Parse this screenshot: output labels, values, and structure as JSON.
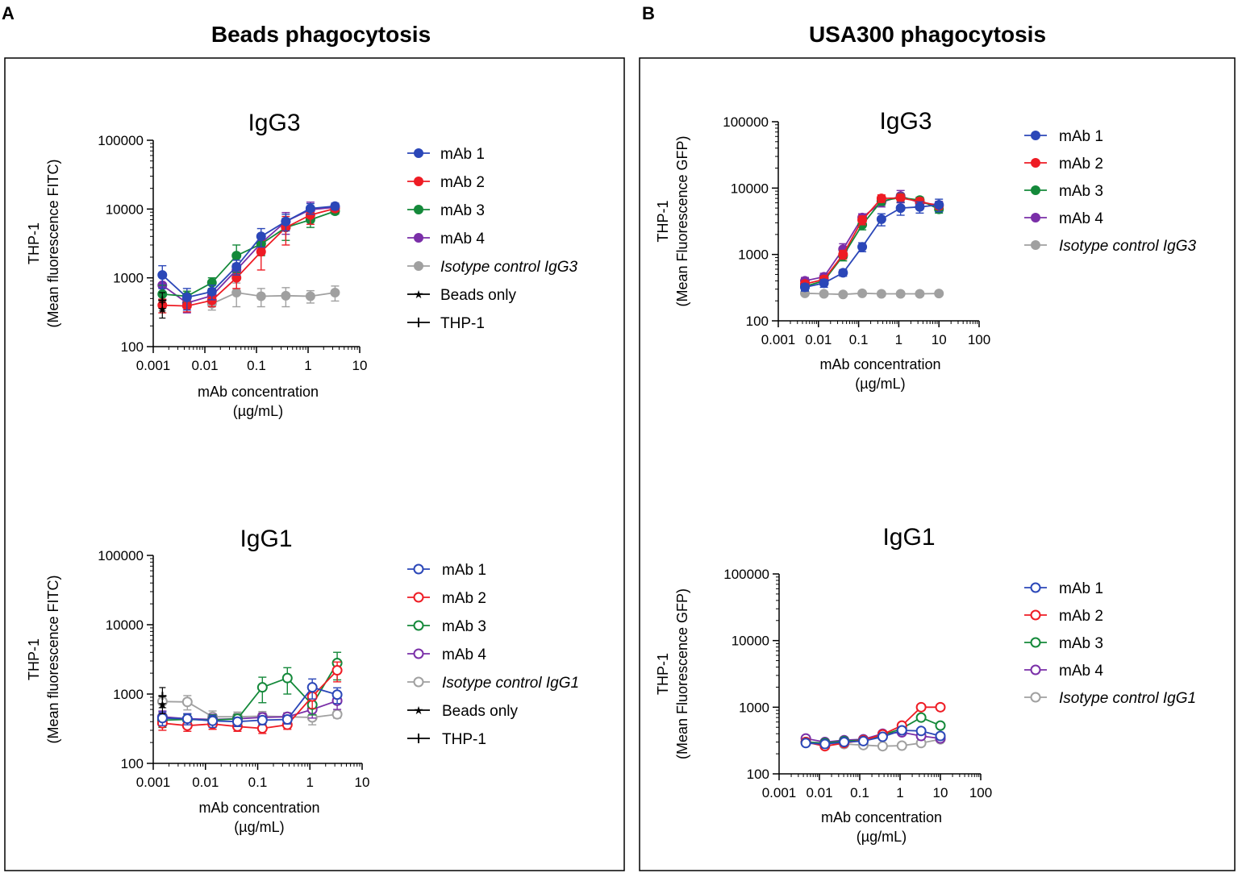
{
  "panels": [
    {
      "letter": "A",
      "title": "Beads phagocytosis"
    },
    {
      "letter": "B",
      "title": "USA300 phagocytosis"
    }
  ],
  "colors": {
    "mAb1": "#2b47b8",
    "mAb2": "#ee1c24",
    "mAb3": "#14893a",
    "mAb4": "#7a2fa8",
    "isotype": "#a0a0a0",
    "black": "#000000"
  },
  "chart_data": [
    {
      "id": "A_IgG3",
      "type": "scatter",
      "title": "IgG3",
      "ylabel_line1": "THP-1",
      "ylabel_line2": "(Mean fluorescence FITC)",
      "xlabel_line1": "mAb concentration",
      "xlabel_line2": "(µg/mL)",
      "xscale": "log",
      "yscale": "log",
      "xlim": [
        0.001,
        10
      ],
      "ylim": [
        100,
        100000
      ],
      "xticks": [
        0.001,
        0.01,
        0.1,
        1,
        10
      ],
      "xtick_labels": [
        "0.001",
        "0.01",
        "0.1",
        "1",
        "10"
      ],
      "yticks": [
        100,
        1000,
        10000,
        100000
      ],
      "ytick_labels": [
        "100",
        "1000",
        "10000",
        "100000"
      ],
      "x": [
        0.0015,
        0.0045,
        0.0137,
        0.041,
        0.123,
        0.37,
        1.11,
        3.33
      ],
      "series": [
        {
          "name": "mAb 1",
          "color_key": "mAb1",
          "marker": "filled",
          "values": [
            1100,
            520,
            630,
            1450,
            4000,
            6600,
            10200,
            11000
          ],
          "errors": [
            400,
            180,
            150,
            350,
            1200,
            1800,
            1800,
            1200
          ]
        },
        {
          "name": "mAb 2",
          "color_key": "mAb2",
          "marker": "filled",
          "values": [
            400,
            390,
            470,
            1000,
            2400,
            5400,
            8200,
            10200
          ],
          "errors": [
            90,
            70,
            90,
            300,
            1100,
            2400,
            2200,
            1000
          ]
        },
        {
          "name": "mAb 3",
          "color_key": "mAb3",
          "marker": "filled",
          "values": [
            580,
            540,
            850,
            2100,
            3100,
            5400,
            7000,
            9300
          ],
          "errors": [
            200,
            100,
            150,
            900,
            1000,
            1900,
            1600,
            900
          ]
        },
        {
          "name": "mAb 4",
          "color_key": "mAb4",
          "marker": "filled",
          "values": [
            780,
            430,
            550,
            1300,
            3200,
            6600,
            9800,
            10600
          ],
          "errors": [
            300,
            120,
            120,
            300,
            1000,
            2300,
            2800,
            1100
          ]
        },
        {
          "name": "Isotype control IgG3",
          "color_key": "isotype",
          "marker": "filled",
          "italic": true,
          "values": [
            null,
            null,
            420,
            610,
            540,
            550,
            540,
            610
          ],
          "errors": [
            0,
            0,
            80,
            230,
            160,
            170,
            110,
            150
          ]
        }
      ],
      "extra_legend": [
        {
          "name": "Beads only",
          "color_key": "black",
          "marker": "star"
        },
        {
          "name": "THP-1",
          "color_key": "black",
          "marker": "cross"
        }
      ],
      "extra_points": [
        {
          "name": "Beads only",
          "x": 0.0015,
          "y": 350,
          "err": 90
        },
        {
          "name": "THP-1",
          "x": 0.0015,
          "y": 470,
          "err": 140
        }
      ]
    },
    {
      "id": "A_IgG1",
      "type": "scatter",
      "title": "IgG1",
      "ylabel_line1": "THP-1",
      "ylabel_line2": "(Mean fluorescence FITC)",
      "xlabel_line1": "mAb concentration",
      "xlabel_line2": "(µg/mL)",
      "xscale": "log",
      "yscale": "log",
      "xlim": [
        0.001,
        10
      ],
      "ylim": [
        100,
        100000
      ],
      "xticks": [
        0.001,
        0.01,
        0.1,
        1,
        10
      ],
      "xtick_labels": [
        "0.001",
        "0.01",
        "0.1",
        "1",
        "10"
      ],
      "yticks": [
        100,
        1000,
        10000,
        100000
      ],
      "ytick_labels": [
        "100",
        "1000",
        "10000",
        "100000"
      ],
      "x": [
        0.0015,
        0.0045,
        0.0137,
        0.041,
        0.123,
        0.37,
        1.11,
        3.33
      ],
      "series": [
        {
          "name": "mAb 1",
          "color_key": "mAb1",
          "marker": "open",
          "values": [
            450,
            440,
            410,
            400,
            420,
            430,
            1250,
            980
          ],
          "errors": [
            100,
            80,
            80,
            60,
            60,
            60,
            400,
            250
          ]
        },
        {
          "name": "mAb 2",
          "color_key": "mAb2",
          "marker": "open",
          "values": [
            380,
            350,
            370,
            340,
            320,
            360,
            920,
            2200
          ],
          "errors": [
            80,
            60,
            60,
            50,
            50,
            50,
            300,
            700
          ]
        },
        {
          "name": "mAb 3",
          "color_key": "mAb3",
          "marker": "open",
          "values": [
            420,
            430,
            420,
            440,
            1250,
            1700,
            700,
            2800
          ],
          "errors": [
            90,
            80,
            80,
            70,
            500,
            700,
            200,
            1200
          ]
        },
        {
          "name": "mAb 4",
          "color_key": "mAb4",
          "marker": "open",
          "values": [
            470,
            440,
            430,
            440,
            460,
            470,
            600,
            800
          ],
          "errors": [
            100,
            80,
            80,
            60,
            70,
            60,
            150,
            200
          ]
        },
        {
          "name": "Isotype control IgG1",
          "color_key": "isotype",
          "marker": "open",
          "italic": true,
          "values": [
            780,
            770,
            470,
            470,
            480,
            470,
            460,
            510
          ],
          "errors": [
            150,
            180,
            100,
            80,
            80,
            70,
            100,
            60
          ]
        }
      ],
      "extra_legend": [
        {
          "name": "Beads only",
          "color_key": "black",
          "marker": "star"
        },
        {
          "name": "THP-1",
          "color_key": "black",
          "marker": "cross"
        }
      ],
      "extra_points": [
        {
          "name": "Beads only",
          "x": 0.0015,
          "y": 720,
          "err": 200
        },
        {
          "name": "THP-1",
          "x": 0.0015,
          "y": 940,
          "err": 300
        }
      ]
    },
    {
      "id": "B_IgG3",
      "type": "scatter",
      "title": "IgG3",
      "ylabel_line1": "THP-1",
      "ylabel_line2": "(Mean Fluorescence GFP)",
      "xlabel_line1": "mAb concentration",
      "xlabel_line2": "(µg/mL)",
      "xscale": "log",
      "yscale": "log",
      "xlim": [
        0.001,
        100
      ],
      "ylim": [
        100,
        100000
      ],
      "xticks": [
        0.001,
        0.01,
        0.1,
        1,
        10,
        100
      ],
      "xtick_labels": [
        "0.001",
        "0.01",
        "0.1",
        "1",
        "10",
        "100"
      ],
      "yticks": [
        100,
        1000,
        10000,
        100000
      ],
      "ytick_labels": [
        "100",
        "1000",
        "10000",
        "100000"
      ],
      "x": [
        0.0046,
        0.0137,
        0.041,
        0.123,
        0.37,
        1.11,
        3.33,
        10
      ],
      "series": [
        {
          "name": "mAb 1",
          "color_key": "mAb1",
          "marker": "filled",
          "values": [
            320,
            370,
            530,
            1300,
            3400,
            5000,
            5200,
            5600
          ],
          "errors": [
            40,
            50,
            60,
            200,
            700,
            1100,
            1000,
            1200
          ]
        },
        {
          "name": "mAb 2",
          "color_key": "mAb2",
          "marker": "filled",
          "values": [
            360,
            420,
            1000,
            3300,
            7000,
            7100,
            6300,
            5400
          ],
          "errors": [
            40,
            50,
            150,
            500,
            900,
            1000,
            800,
            600
          ]
        },
        {
          "name": "mAb 3",
          "color_key": "mAb3",
          "marker": "filled",
          "values": [
            330,
            400,
            950,
            2800,
            6400,
            7200,
            6600,
            4800
          ],
          "errors": [
            40,
            50,
            150,
            450,
            900,
            1000,
            700,
            600
          ]
        },
        {
          "name": "mAb 4",
          "color_key": "mAb4",
          "marker": "filled",
          "values": [
            400,
            460,
            1200,
            3600,
            6100,
            7600,
            6000,
            5600
          ],
          "errors": [
            50,
            60,
            250,
            500,
            900,
            1600,
            900,
            700
          ]
        },
        {
          "name": "Isotype control IgG3",
          "color_key": "isotype",
          "marker": "filled",
          "italic": true,
          "values": [
            260,
            255,
            250,
            260,
            255,
            255,
            255,
            258
          ],
          "errors": [
            15,
            15,
            10,
            10,
            10,
            10,
            10,
            10
          ]
        }
      ],
      "extra_legend": [],
      "extra_points": []
    },
    {
      "id": "B_IgG1",
      "type": "scatter",
      "title": "IgG1",
      "ylabel_line1": "THP-1",
      "ylabel_line2": "(Mean Fluorescence GFP)",
      "xlabel_line1": "mAb concentration",
      "xlabel_line2": "(µg/mL)",
      "xscale": "log",
      "yscale": "log",
      "xlim": [
        0.001,
        100
      ],
      "ylim": [
        100,
        100000
      ],
      "xticks": [
        0.001,
        0.01,
        0.1,
        1,
        10,
        100
      ],
      "xtick_labels": [
        "0.001",
        "0.01",
        "0.1",
        "1",
        "10",
        "100"
      ],
      "yticks": [
        100,
        1000,
        10000,
        100000
      ],
      "ytick_labels": [
        "100",
        "1000",
        "10000",
        "100000"
      ],
      "x": [
        0.0046,
        0.0137,
        0.041,
        0.123,
        0.37,
        1.11,
        3.33,
        10
      ],
      "series": [
        {
          "name": "mAb 1",
          "color_key": "mAb1",
          "marker": "open",
          "values": [
            290,
            280,
            300,
            310,
            360,
            450,
            440,
            370
          ],
          "errors": [
            20,
            20,
            20,
            20,
            25,
            40,
            40,
            30
          ]
        },
        {
          "name": "mAb 2",
          "color_key": "mAb2",
          "marker": "open",
          "values": [
            300,
            260,
            290,
            320,
            390,
            530,
            1000,
            1000
          ],
          "errors": [
            20,
            20,
            20,
            25,
            30,
            40,
            60,
            60
          ]
        },
        {
          "name": "mAb 3",
          "color_key": "mAb3",
          "marker": "open",
          "values": [
            300,
            290,
            310,
            320,
            380,
            480,
            700,
            530
          ],
          "errors": [
            20,
            20,
            20,
            25,
            30,
            40,
            50,
            40
          ]
        },
        {
          "name": "mAb 4",
          "color_key": "mAb4",
          "marker": "open",
          "values": [
            340,
            300,
            320,
            330,
            400,
            420,
            370,
            340
          ],
          "errors": [
            20,
            20,
            20,
            20,
            30,
            30,
            30,
            25
          ]
        },
        {
          "name": "Isotype control IgG1",
          "color_key": "isotype",
          "marker": "open",
          "italic": true,
          "values": [
            300,
            290,
            280,
            270,
            260,
            265,
            290,
            330
          ],
          "errors": [
            15,
            15,
            15,
            15,
            15,
            15,
            20,
            20
          ]
        }
      ],
      "extra_legend": [],
      "extra_points": []
    }
  ]
}
